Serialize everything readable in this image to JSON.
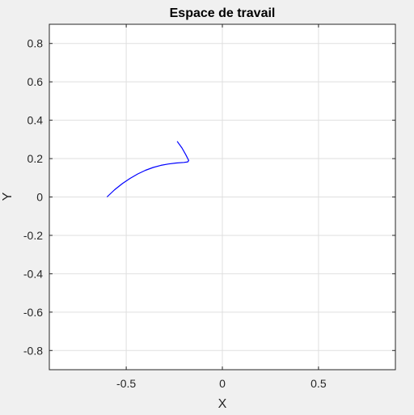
{
  "chart_data": {
    "type": "line",
    "title": "Espace de travail",
    "xlabel": "X",
    "ylabel": "Y",
    "xlim": [
      -0.9,
      0.9
    ],
    "ylim": [
      -0.9,
      0.9
    ],
    "grid": true,
    "xticks": [
      -0.5,
      0,
      0.5
    ],
    "xtick_labels": [
      "-0.5",
      "0",
      "0.5"
    ],
    "yticks": [
      -0.8,
      -0.6,
      -0.4,
      -0.2,
      0,
      0.2,
      0.4,
      0.6,
      0.8
    ],
    "ytick_labels": [
      "-0.8",
      "-0.6",
      "-0.4",
      "-0.2",
      "0",
      "0.2",
      "0.4",
      "0.6",
      "0.8"
    ],
    "series": [
      {
        "color": "#0000ff",
        "x": [
          -0.6,
          -0.56,
          -0.52,
          -0.48,
          -0.44,
          -0.4,
          -0.36,
          -0.32,
          -0.28,
          -0.24,
          -0.2,
          -0.18,
          -0.175,
          -0.19,
          -0.21,
          -0.235
        ],
        "y": [
          0.0,
          0.038,
          0.07,
          0.097,
          0.12,
          0.139,
          0.154,
          0.165,
          0.172,
          0.177,
          0.18,
          0.183,
          0.19,
          0.22,
          0.255,
          0.29
        ]
      }
    ]
  }
}
